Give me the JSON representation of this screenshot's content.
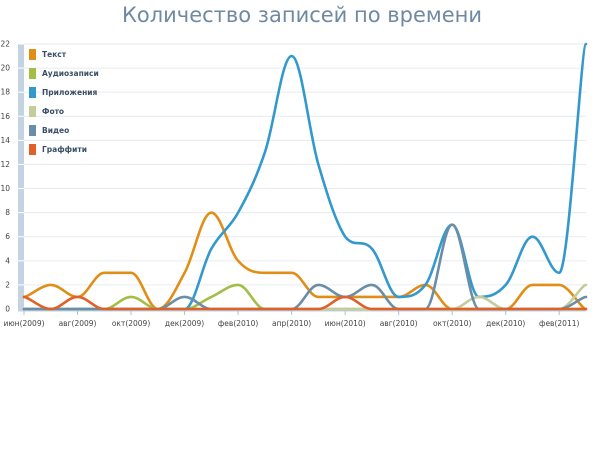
{
  "chart_data": {
    "type": "line",
    "title": "Количество записей по времени",
    "xlabel": "",
    "ylabel": "",
    "ylim": [
      0,
      22
    ],
    "y_ticks": [
      0,
      2,
      4,
      6,
      8,
      10,
      12,
      14,
      16,
      18,
      20,
      22
    ],
    "x_tick_labels": [
      {
        "label": "июн(2009)",
        "x": 0
      },
      {
        "label": "авг(2009)",
        "x": 2
      },
      {
        "label": "окт(2009)",
        "x": 4
      },
      {
        "label": "дек(2009)",
        "x": 6
      },
      {
        "label": "фев(2010)",
        "x": 8
      },
      {
        "label": "апр(2010)",
        "x": 10
      },
      {
        "label": "июн(2010)",
        "x": 12
      },
      {
        "label": "авг(2010)",
        "x": 14
      },
      {
        "label": "окт(2010)",
        "x": 16
      },
      {
        "label": "дек(2010)",
        "x": 18
      },
      {
        "label": "фев(2011)",
        "x": 20
      }
    ],
    "x_max": 21,
    "grid": true,
    "legend": "top-left",
    "series": [
      {
        "name": "Текст",
        "color": "#e08e16",
        "x": [
          0,
          1,
          2,
          3,
          4,
          5,
          6,
          7,
          8,
          9,
          10,
          11,
          12,
          13,
          14,
          15,
          16,
          17,
          18,
          19,
          20,
          21
        ],
        "y": [
          1,
          2,
          1,
          3,
          3,
          0,
          3,
          8,
          4,
          3,
          3,
          1,
          1,
          1,
          1,
          2,
          0,
          0,
          0,
          2,
          2,
          0
        ]
      },
      {
        "name": "Аудиозаписи",
        "color": "#a3be45",
        "x": [
          0,
          1,
          2,
          3,
          4,
          5,
          6,
          7,
          8,
          9,
          10,
          11,
          12,
          13,
          14,
          15,
          16,
          17,
          18,
          19,
          20,
          21
        ],
        "y": [
          0,
          0,
          0,
          0,
          1,
          0,
          0,
          1,
          2,
          0,
          0,
          0,
          0,
          0,
          0,
          0,
          0,
          0,
          0,
          0,
          0,
          0
        ]
      },
      {
        "name": "Приложения",
        "color": "#3399cc",
        "x": [
          0,
          1,
          2,
          3,
          4,
          5,
          6,
          7,
          8,
          9,
          10,
          11,
          12,
          13,
          14,
          15,
          16,
          17,
          18,
          19,
          20,
          21
        ],
        "y": [
          0,
          0,
          0,
          0,
          0,
          0,
          0,
          5,
          8,
          13,
          21,
          12,
          6,
          5,
          1,
          2,
          7,
          1,
          2,
          6,
          3,
          22
        ]
      },
      {
        "name": "Фото",
        "color": "#c5cc9b",
        "x": [
          0,
          1,
          2,
          3,
          4,
          5,
          6,
          7,
          8,
          9,
          10,
          11,
          12,
          13,
          14,
          15,
          16,
          17,
          18,
          19,
          20,
          21
        ],
        "y": [
          0,
          0,
          0,
          0,
          0,
          0,
          0,
          0,
          0,
          0,
          0,
          0,
          0,
          0,
          0,
          0,
          0,
          1,
          0,
          0,
          0,
          2
        ]
      },
      {
        "name": "Видео",
        "color": "#6b8ea8",
        "x": [
          0,
          1,
          2,
          3,
          4,
          5,
          6,
          7,
          8,
          9,
          10,
          11,
          12,
          13,
          14,
          15,
          16,
          17,
          18,
          19,
          20,
          21
        ],
        "y": [
          0,
          0,
          0,
          0,
          0,
          0,
          1,
          0,
          0,
          0,
          0,
          2,
          1,
          2,
          0,
          0,
          7,
          0,
          0,
          0,
          0,
          1
        ]
      },
      {
        "name": "Граффити",
        "color": "#e0602a",
        "x": [
          0,
          1,
          2,
          3,
          4,
          5,
          6,
          7,
          8,
          9,
          10,
          11,
          12,
          13,
          14,
          15,
          16,
          17,
          18,
          19,
          20,
          21
        ],
        "y": [
          1,
          0,
          1,
          0,
          0,
          0,
          0,
          0,
          0,
          0,
          0,
          0,
          1,
          0,
          0,
          0,
          0,
          0,
          0,
          0,
          0,
          0
        ]
      }
    ]
  }
}
